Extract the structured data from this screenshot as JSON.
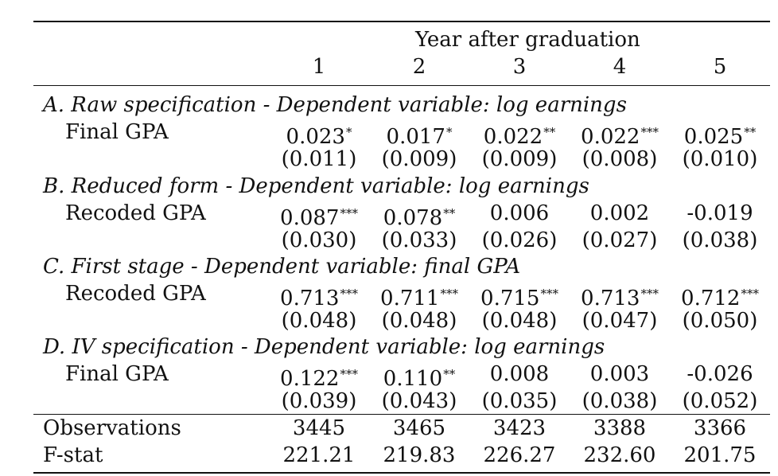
{
  "header": {
    "spanner": "Year after graduation",
    "columns": [
      "1",
      "2",
      "3",
      "4",
      "5"
    ]
  },
  "panels": [
    {
      "title": "A. Raw specification - Dependent variable: log earnings",
      "row_label": "Final GPA",
      "coefs": [
        {
          "value": "0.023",
          "stars": "*"
        },
        {
          "value": "0.017",
          "stars": "*"
        },
        {
          "value": "0.022",
          "stars": "**"
        },
        {
          "value": "0.022",
          "stars": "***"
        },
        {
          "value": "0.025",
          "stars": "**"
        }
      ],
      "ses": [
        "(0.011)",
        "(0.009)",
        "(0.009)",
        "(0.008)",
        "(0.010)"
      ]
    },
    {
      "title": "B. Reduced form - Dependent variable: log earnings",
      "row_label": "Recoded GPA",
      "coefs": [
        {
          "value": "0.087",
          "stars": "***"
        },
        {
          "value": "0.078",
          "stars": "**"
        },
        {
          "value": "0.006",
          "stars": ""
        },
        {
          "value": "0.002",
          "stars": ""
        },
        {
          "value": "-0.019",
          "stars": ""
        }
      ],
      "ses": [
        "(0.030)",
        "(0.033)",
        "(0.026)",
        "(0.027)",
        "(0.038)"
      ]
    },
    {
      "title": "C. First stage - Dependent variable: final GPA",
      "row_label": "Recoded GPA",
      "coefs": [
        {
          "value": "0.713",
          "stars": "***"
        },
        {
          "value": "0.711",
          "stars": "***"
        },
        {
          "value": "0.715",
          "stars": "***"
        },
        {
          "value": "0.713",
          "stars": "***"
        },
        {
          "value": "0.712",
          "stars": "***"
        }
      ],
      "ses": [
        "(0.048)",
        "(0.048)",
        "(0.048)",
        "(0.047)",
        "(0.050)"
      ]
    },
    {
      "title": "D. IV specification - Dependent variable: log earnings",
      "row_label": "Final GPA",
      "coefs": [
        {
          "value": "0.122",
          "stars": "***"
        },
        {
          "value": "0.110",
          "stars": "**"
        },
        {
          "value": "0.008",
          "stars": ""
        },
        {
          "value": "0.003",
          "stars": ""
        },
        {
          "value": "-0.026",
          "stars": ""
        }
      ],
      "ses": [
        "(0.039)",
        "(0.043)",
        "(0.035)",
        "(0.038)",
        "(0.052)"
      ]
    }
  ],
  "stats": [
    {
      "label": "Observations",
      "values": [
        "3445",
        "3465",
        "3423",
        "3388",
        "3366"
      ]
    },
    {
      "label": "F-stat",
      "values": [
        "221.21",
        "219.83",
        "226.27",
        "232.60",
        "201.75"
      ]
    }
  ]
}
